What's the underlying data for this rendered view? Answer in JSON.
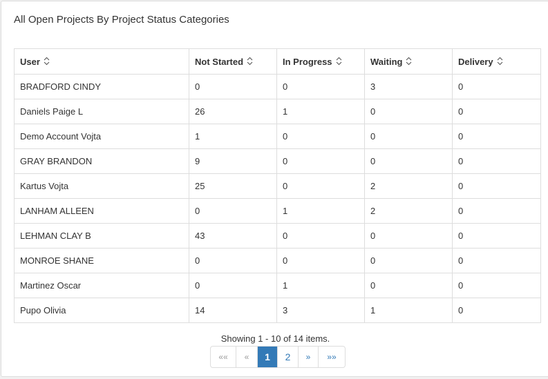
{
  "panel": {
    "title": "All Open Projects By Project Status Categories"
  },
  "table": {
    "columns": [
      {
        "label": "User"
      },
      {
        "label": "Not Started"
      },
      {
        "label": "In Progress"
      },
      {
        "label": "Waiting"
      },
      {
        "label": "Delivery"
      }
    ],
    "rows": [
      {
        "user": "BRADFORD CINDY",
        "not_started": "0",
        "in_progress": "0",
        "waiting": "3",
        "delivery": "0"
      },
      {
        "user": "Daniels Paige L",
        "not_started": "26",
        "in_progress": "1",
        "waiting": "0",
        "delivery": "0"
      },
      {
        "user": "Demo Account Vojta",
        "not_started": "1",
        "in_progress": "0",
        "waiting": "0",
        "delivery": "0"
      },
      {
        "user": "GRAY BRANDON",
        "not_started": "9",
        "in_progress": "0",
        "waiting": "0",
        "delivery": "0"
      },
      {
        "user": "Kartus Vojta",
        "not_started": "25",
        "in_progress": "0",
        "waiting": "2",
        "delivery": "0"
      },
      {
        "user": "LANHAM ALLEEN",
        "not_started": "0",
        "in_progress": "1",
        "waiting": "2",
        "delivery": "0"
      },
      {
        "user": "LEHMAN CLAY B",
        "not_started": "43",
        "in_progress": "0",
        "waiting": "0",
        "delivery": "0"
      },
      {
        "user": "MONROE SHANE",
        "not_started": "0",
        "in_progress": "0",
        "waiting": "0",
        "delivery": "0"
      },
      {
        "user": "Martinez Oscar",
        "not_started": "0",
        "in_progress": "1",
        "waiting": "0",
        "delivery": "0"
      },
      {
        "user": "Pupo Olivia",
        "not_started": "14",
        "in_progress": "3",
        "waiting": "1",
        "delivery": "0"
      }
    ]
  },
  "summary": {
    "text": "Showing 1 - 10 of 14 items."
  },
  "pagination": {
    "first": "««",
    "prev": "«",
    "pages": [
      "1",
      "2"
    ],
    "current_page": "1",
    "next": "»",
    "last": "»»",
    "active_color": "#337ab7"
  },
  "icons": {
    "sort": "sort-up-down-icon"
  }
}
